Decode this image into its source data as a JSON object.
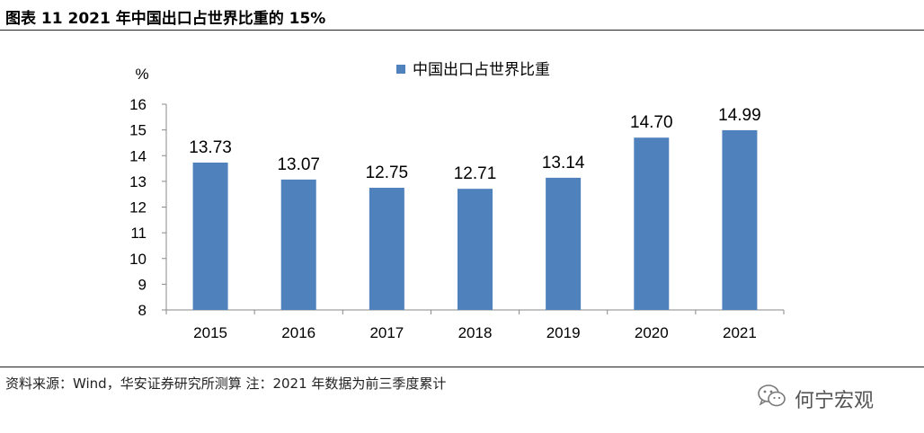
{
  "header": {
    "title": "图表 11 2021 年中国出口占世界比重的 15%"
  },
  "footer": {
    "source": "资料来源：Wind，华安证券研究所测算 注：2021 年数据为前三季度累计",
    "watermark_text": "何宁宏观",
    "watermark_icon": "wechat-icon"
  },
  "chart_data": {
    "type": "bar",
    "title": "",
    "xlabel": "",
    "ylabel": "%",
    "categories": [
      "2015",
      "2016",
      "2017",
      "2018",
      "2019",
      "2020",
      "2021"
    ],
    "series": [
      {
        "name": "中国出口占世界比重",
        "values": [
          13.73,
          13.07,
          12.75,
          12.71,
          13.14,
          14.7,
          14.99
        ],
        "color": "#4F81BD"
      }
    ],
    "data_labels": [
      "13.73",
      "13.07",
      "12.75",
      "12.71",
      "13.14",
      "14.70",
      "14.99"
    ],
    "ylim": [
      8,
      16
    ],
    "yticks": [
      "8",
      "9",
      "10",
      "11",
      "12",
      "13",
      "14",
      "15",
      "16"
    ],
    "grid": false,
    "legend_position": "top-center"
  }
}
